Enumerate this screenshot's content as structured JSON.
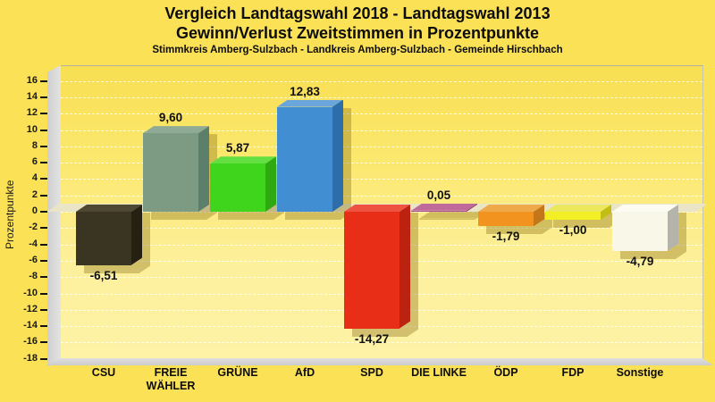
{
  "header": {
    "title_line1": "Vergleich Landtagswahl 2018 - Landtagswahl 2013",
    "title_line2": "Gewinn/Verlust Zweitstimmen in Prozentpunkte",
    "subtitle": "Stimmkreis Amberg-Sulzbach - Landkreis Amberg-Sulzbach - Gemeinde Hirschbach"
  },
  "chart_data": {
    "type": "bar",
    "title": "Vergleich Landtagswahl 2018 - Landtagswahl 2013",
    "subtitle2": "Gewinn/Verlust Zweitstimmen in Prozentpunkte",
    "subtitle3": "Stimmkreis Amberg-Sulzbach - Landkreis Amberg-Sulzbach - Gemeinde Hirschbach",
    "xlabel": "",
    "ylabel": "Prozentpunkte",
    "ylim": [
      -18,
      16
    ],
    "ytick_step": 2,
    "grid": "horizontal-dashed",
    "legend": "none",
    "style": "3d-bars",
    "categories": [
      "CSU",
      "FREIE WÄHLER",
      "GRÜNE",
      "AfD",
      "SPD",
      "DIE LINKE",
      "ÖDP",
      "FDP",
      "Sonstige"
    ],
    "category_labels": [
      "CSU",
      "FREIE\nWÄHLER",
      "GRÜNE",
      "AfD",
      "SPD",
      "DIE LINKE",
      "ÖDP",
      "FDP",
      "Sonstige"
    ],
    "values": [
      -6.51,
      9.6,
      5.87,
      12.83,
      -14.27,
      0.05,
      -1.79,
      -1.0,
      -4.79
    ],
    "value_labels": [
      "-6,51",
      "9,60",
      "5,87",
      "12,83",
      "-14,27",
      "0,05",
      "-1,79",
      "-1,00",
      "-4,79"
    ],
    "bar_colors": [
      {
        "front": "#3A3423",
        "top": "#4E4832",
        "side": "#252012"
      },
      {
        "front": "#7D9A83",
        "top": "#8FAB96",
        "side": "#5B7F6B"
      },
      {
        "front": "#3FD51D",
        "top": "#63DF41",
        "side": "#2EA911"
      },
      {
        "front": "#418ED2",
        "top": "#6AA5DC",
        "side": "#2D6DA9"
      },
      {
        "front": "#E92E17",
        "top": "#EE5342",
        "side": "#BB2310"
      },
      {
        "front": "#AA4F85",
        "top": "#C06A9C",
        "side": "#8F3F6E"
      },
      {
        "front": "#F2931F",
        "top": "#F0A94A",
        "side": "#C4761A"
      },
      {
        "front": "#F2EF25",
        "top": "#EBE85E",
        "side": "#C2BE16"
      },
      {
        "front": "#F9F7E8",
        "top": "#FDFCF3",
        "side": "#B5B4AB"
      }
    ],
    "background": "#FBE156",
    "plot_background_top": "#F8DF52",
    "plot_background_bottom": "#FDF2A6",
    "zero_plane_color": "#E9E5C6",
    "shadow_color": "rgba(140,114,24,0.38)"
  }
}
